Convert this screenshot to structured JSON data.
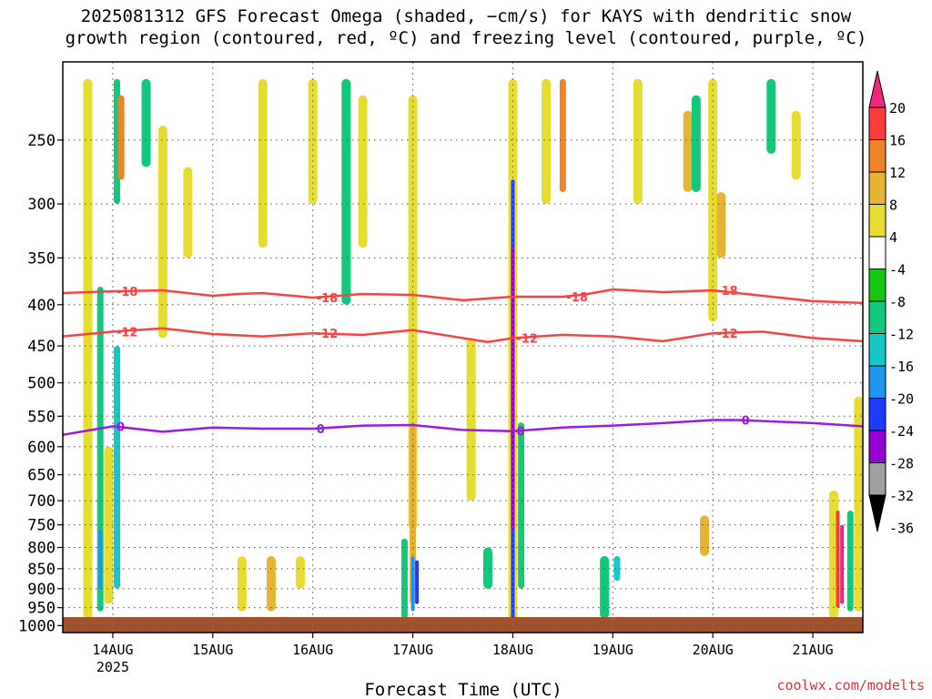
{
  "title_line1": "2025081312 GFS Forecast Omega (shaded, −cm/s) for KAYS with dendritic snow",
  "title_line2": "growth region (contoured, red, ºC) and freezing level (contoured, purple, ºC)",
  "credit": "coolwx.com/modelts",
  "chart_data": {
    "type": "heatmap",
    "xlabel": "Forecast Time (UTC)",
    "x_ticks": [
      "14AUG",
      "15AUG",
      "16AUG",
      "17AUG",
      "18AUG",
      "19AUG",
      "20AUG",
      "21AUG"
    ],
    "x_subtick": "2025",
    "x_range_hours": [
      -12,
      180
    ],
    "y_ticks": [
      250,
      300,
      350,
      400,
      450,
      500,
      550,
      600,
      650,
      700,
      750,
      800,
      850,
      900,
      950,
      1000
    ],
    "y_range": [
      200,
      1020
    ],
    "y_scale": "log pressure (hPa)",
    "grid": "dotted",
    "colorbar": {
      "labels": [
        "20",
        "16",
        "12",
        "8",
        "4",
        "-4",
        "-8",
        "-12",
        "-16",
        "-20",
        "-24",
        "-28",
        "-32",
        "-36"
      ],
      "colors": [
        "#f0287d",
        "#ff3a3a",
        "#f08228",
        "#e6b432",
        "#e6dc32",
        "#ffffff",
        "#14c814",
        "#12c87a",
        "#14c8c8",
        "#1e96f0",
        "#1e3cff",
        "#9600d2",
        "#a0a0a0",
        "#000000"
      ]
    },
    "contours": [
      {
        "label": "-18",
        "color": "#ff4040",
        "points": [
          [
            -12,
            387
          ],
          [
            0,
            385
          ],
          [
            12,
            384
          ],
          [
            24,
            390
          ],
          [
            30,
            388
          ],
          [
            36,
            387
          ],
          [
            48,
            392
          ],
          [
            60,
            388
          ],
          [
            72,
            389
          ],
          [
            84,
            395
          ],
          [
            96,
            391
          ],
          [
            108,
            391
          ],
          [
            114,
            388
          ],
          [
            120,
            383
          ],
          [
            132,
            386
          ],
          [
            144,
            384
          ],
          [
            156,
            390
          ],
          [
            168,
            396
          ],
          [
            180,
            398
          ]
        ]
      },
      {
        "label": "-12",
        "color": "#ff4040",
        "points": [
          [
            -12,
            438
          ],
          [
            0,
            432
          ],
          [
            12,
            428
          ],
          [
            24,
            435
          ],
          [
            36,
            438
          ],
          [
            48,
            434
          ],
          [
            60,
            436
          ],
          [
            72,
            430
          ],
          [
            84,
            440
          ],
          [
            90,
            445
          ],
          [
            96,
            440
          ],
          [
            108,
            436
          ],
          [
            120,
            438
          ],
          [
            132,
            444
          ],
          [
            144,
            434
          ],
          [
            156,
            432
          ],
          [
            168,
            440
          ],
          [
            180,
            444
          ]
        ]
      },
      {
        "label": "0",
        "color": "#9b1be0",
        "points": [
          [
            -12,
            580
          ],
          [
            0,
            566
          ],
          [
            12,
            575
          ],
          [
            24,
            568
          ],
          [
            36,
            570
          ],
          [
            48,
            570
          ],
          [
            60,
            565
          ],
          [
            72,
            564
          ],
          [
            84,
            572
          ],
          [
            96,
            574
          ],
          [
            108,
            568
          ],
          [
            120,
            565
          ],
          [
            132,
            561
          ],
          [
            144,
            556
          ],
          [
            150,
            556
          ],
          [
            168,
            561
          ],
          [
            180,
            566
          ]
        ]
      }
    ],
    "omega_cells": [
      {
        "t": -6,
        "p_top": 210,
        "p_bot": 980,
        "value": 6
      },
      {
        "t": -3,
        "p_top": 380,
        "p_bot": 960,
        "value": -10
      },
      {
        "t": -3,
        "p_top": 760,
        "p_bot": 900,
        "value": -18
      },
      {
        "t": -1,
        "p_top": 600,
        "p_bot": 940,
        "value": 6
      },
      {
        "t": 1,
        "p_top": 210,
        "p_bot": 300,
        "value": -10
      },
      {
        "t": 1,
        "p_top": 450,
        "p_bot": 900,
        "value": -12
      },
      {
        "t": 2,
        "p_top": 220,
        "p_bot": 280,
        "value": 14
      },
      {
        "t": 8,
        "p_top": 210,
        "p_bot": 270,
        "value": -8
      },
      {
        "t": 12,
        "p_top": 240,
        "p_bot": 440,
        "value": 6
      },
      {
        "t": 18,
        "p_top": 270,
        "p_bot": 350,
        "value": 6
      },
      {
        "t": 36,
        "p_top": 210,
        "p_bot": 340,
        "value": 6
      },
      {
        "t": 31,
        "p_top": 820,
        "p_bot": 960,
        "value": 6
      },
      {
        "t": 38,
        "p_top": 820,
        "p_bot": 960,
        "value": 8
      },
      {
        "t": 45,
        "p_top": 820,
        "p_bot": 900,
        "value": 6
      },
      {
        "t": 48,
        "p_top": 210,
        "p_bot": 300,
        "value": 6
      },
      {
        "t": 56,
        "p_top": 210,
        "p_bot": 400,
        "value": -8
      },
      {
        "t": 60,
        "p_top": 220,
        "p_bot": 340,
        "value": 6
      },
      {
        "t": 72,
        "p_top": 220,
        "p_bot": 760,
        "value": 6
      },
      {
        "t": 72,
        "p_top": 560,
        "p_bot": 940,
        "value": 10
      },
      {
        "t": 70,
        "p_top": 780,
        "p_bot": 980,
        "value": -10
      },
      {
        "t": 72,
        "p_top": 820,
        "p_bot": 960,
        "value": -16
      },
      {
        "t": 73,
        "p_top": 830,
        "p_bot": 940,
        "value": -22
      },
      {
        "t": 86,
        "p_top": 440,
        "p_bot": 700,
        "value": 6
      },
      {
        "t": 90,
        "p_top": 800,
        "p_bot": 900,
        "value": -8
      },
      {
        "t": 96,
        "p_top": 210,
        "p_bot": 1000,
        "value": 6
      },
      {
        "t": 96,
        "p_top": 280,
        "p_bot": 980,
        "value": -20
      },
      {
        "t": 96,
        "p_top": 340,
        "p_bot": 760,
        "value": -26
      },
      {
        "t": 98,
        "p_top": 560,
        "p_bot": 900,
        "value": -10
      },
      {
        "t": 104,
        "p_top": 210,
        "p_bot": 300,
        "value": 6
      },
      {
        "t": 108,
        "p_top": 210,
        "p_bot": 290,
        "value": 14
      },
      {
        "t": 118,
        "p_top": 820,
        "p_bot": 980,
        "value": -8
      },
      {
        "t": 121,
        "p_top": 820,
        "p_bot": 880,
        "value": -12
      },
      {
        "t": 126,
        "p_top": 210,
        "p_bot": 300,
        "value": 6
      },
      {
        "t": 138,
        "p_top": 230,
        "p_bot": 290,
        "value": 8
      },
      {
        "t": 140,
        "p_top": 220,
        "p_bot": 290,
        "value": -8
      },
      {
        "t": 142,
        "p_top": 730,
        "p_bot": 820,
        "value": 8
      },
      {
        "t": 144,
        "p_top": 210,
        "p_bot": 420,
        "value": 6
      },
      {
        "t": 146,
        "p_top": 290,
        "p_bot": 350,
        "value": 8
      },
      {
        "t": 158,
        "p_top": 210,
        "p_bot": 260,
        "value": -8
      },
      {
        "t": 164,
        "p_top": 230,
        "p_bot": 280,
        "value": 6
      },
      {
        "t": 173,
        "p_top": 680,
        "p_bot": 980,
        "value": 6
      },
      {
        "t": 174,
        "p_top": 720,
        "p_bot": 950,
        "value": 18
      },
      {
        "t": 175,
        "p_top": 750,
        "p_bot": 940,
        "value": 21
      },
      {
        "t": 177,
        "p_top": 720,
        "p_bot": 960,
        "value": -10
      },
      {
        "t": 179,
        "p_top": 520,
        "p_bot": 960,
        "value": 6
      }
    ]
  }
}
